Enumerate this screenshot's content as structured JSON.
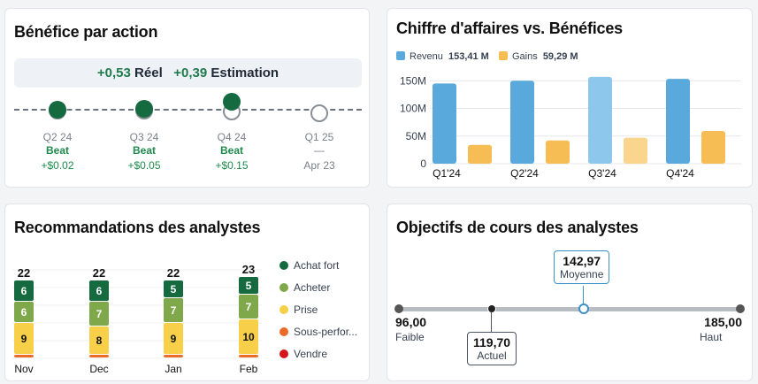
{
  "eps": {
    "title": "Bénéfice par action",
    "banner": {
      "actual_value": "+0,53",
      "actual_label": "Réel",
      "estimate_value": "+0,39",
      "estimate_label": "Estimation"
    },
    "quarters": [
      {
        "quarter": "Q2 24",
        "status": "Beat",
        "amount": "+$0.02"
      },
      {
        "quarter": "Q3 24",
        "status": "Beat",
        "amount": "+$0.05"
      },
      {
        "quarter": "Q4 24",
        "status": "Beat",
        "amount": "+$0.15"
      },
      {
        "quarter": "Q1 25",
        "status": "—",
        "amount": "Apr 23"
      }
    ]
  },
  "revenue": {
    "title": "Chiffre d'affaires vs. Bénéfices",
    "legend": [
      {
        "name": "Revenu",
        "value": "153,41 M",
        "color": "#5aa9dd"
      },
      {
        "name": "Gains",
        "value": "59,29 M",
        "color": "#f5bd54"
      }
    ],
    "chart_data": {
      "type": "bar",
      "categories": [
        "Q1'24",
        "Q2'24",
        "Q3'24",
        "Q4'24"
      ],
      "series": [
        {
          "name": "Revenu",
          "values": [
            145,
            150,
            157,
            153.41
          ]
        },
        {
          "name": "Gains",
          "values": [
            34,
            42,
            47,
            59.29
          ]
        }
      ],
      "y_ticks": [
        "0",
        "50M",
        "100M",
        "150M"
      ],
      "ylim": [
        0,
        160
      ]
    }
  },
  "recommendations": {
    "title": "Recommandations des analystes",
    "chart_data": {
      "type": "bar",
      "categories": [
        "Nov",
        "Dec",
        "Jan",
        "Feb"
      ],
      "totals": [
        22,
        22,
        22,
        23
      ],
      "series": [
        {
          "name": "Achat fort",
          "color": "#156b3f",
          "values": [
            6,
            6,
            5,
            5
          ]
        },
        {
          "name": "Acheter",
          "color": "#7fa84a",
          "values": [
            6,
            7,
            7,
            7
          ]
        },
        {
          "name": "Prise",
          "color": "#f7cf48",
          "values": [
            9,
            8,
            9,
            10
          ]
        },
        {
          "name": "Sous-perfor...",
          "color": "#ea6a2a",
          "values": [
            1,
            1,
            1,
            1
          ]
        },
        {
          "name": "Vendre",
          "color": "#d3161b",
          "values": [
            0,
            0,
            0,
            0
          ]
        }
      ]
    }
  },
  "price_targets": {
    "title": "Objectifs de cours des analystes",
    "low_value": "96,00",
    "low_label": "Faible",
    "high_value": "185,00",
    "high_label": "Haut",
    "average_value": "142,97",
    "average_label": "Moyenne",
    "current_value": "119,70",
    "current_label": "Actuel"
  }
}
